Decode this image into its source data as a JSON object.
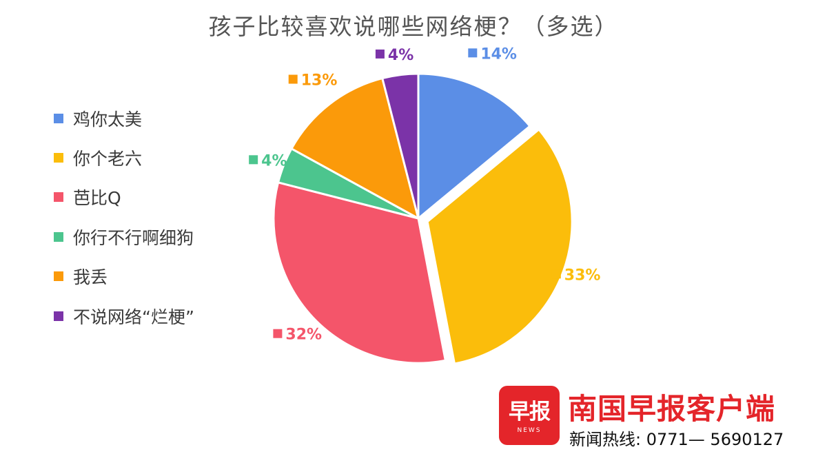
{
  "chart_data": {
    "type": "pie",
    "title": "孩子比较喜欢说哪些网络梗？（多选）",
    "categories": [
      "鸡你太美",
      "你个老六",
      "芭比Q",
      "你行不行啊细狗",
      "我丢",
      "不说网络“烂梗”"
    ],
    "values": [
      14,
      33,
      32,
      4,
      13,
      4
    ],
    "value_labels": [
      "14%",
      "33%",
      "32%",
      "4%",
      "13%",
      "4%"
    ],
    "colors": [
      "#5b8ee6",
      "#fbbd0b",
      "#f4556a",
      "#4cc58e",
      "#fb9a0a",
      "#7b33a8"
    ],
    "legend_position": "left",
    "start_angle_deg": 0,
    "direction": "clockwise",
    "exploded_slice_index": 1
  },
  "branding": {
    "logo_text": "早报",
    "logo_subtext": "NEWS",
    "name": "南国早报客户端",
    "hotline": "新闻热线: 0771— 5690127",
    "color": "#e4252a"
  }
}
